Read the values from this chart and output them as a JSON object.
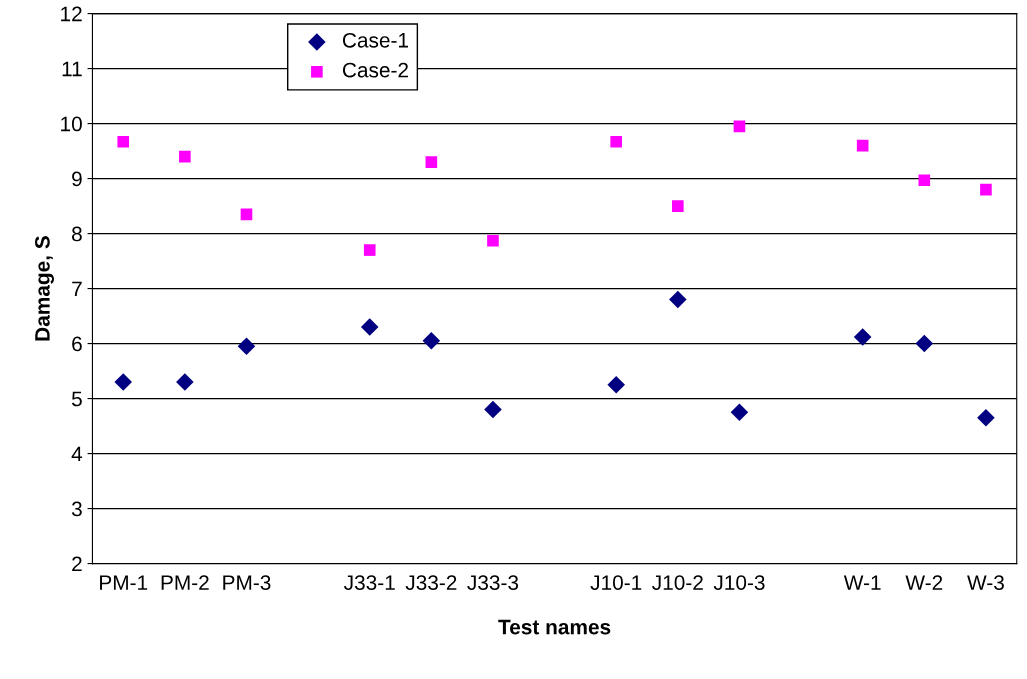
{
  "chart_data": {
    "type": "scatter",
    "xlabel": "Test names",
    "ylabel": "Damage, S",
    "categories": [
      "PM-1",
      "PM-2",
      "PM-3",
      null,
      "J33-1",
      "J33-2",
      "J33-3",
      null,
      "J10-1",
      "J10-2",
      "J10-3",
      null,
      "W-1",
      "W-2",
      "W-3"
    ],
    "series": [
      {
        "name": "Case-1",
        "color": "#000080",
        "marker": "diamond",
        "values": [
          5.3,
          5.3,
          5.95,
          null,
          6.3,
          6.05,
          4.8,
          null,
          5.25,
          6.8,
          4.75,
          null,
          6.12,
          6.0,
          4.65
        ]
      },
      {
        "name": "Case-2",
        "color": "#ff00ff",
        "marker": "square",
        "values": [
          9.67,
          9.4,
          8.35,
          null,
          7.7,
          9.3,
          7.87,
          null,
          9.67,
          8.5,
          9.95,
          null,
          9.6,
          8.97,
          8.8
        ]
      }
    ],
    "ylim": [
      2,
      12
    ],
    "yticks": [
      2,
      3,
      4,
      5,
      6,
      7,
      8,
      9,
      10,
      11,
      12
    ],
    "grid": "y",
    "legend": "top left"
  }
}
